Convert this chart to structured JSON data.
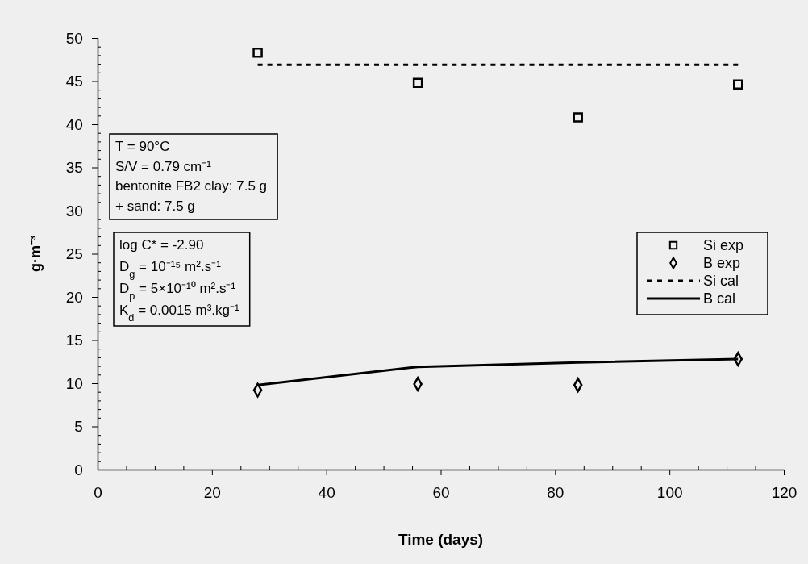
{
  "chart_data": {
    "type": "scatter",
    "xlabel": "Time (days)",
    "ylabel": "g·m⁻³",
    "xlim": [
      0,
      120
    ],
    "ylim": [
      0,
      50
    ],
    "xticks": [
      0,
      {
        "value": 5,
        "label": null
      },
      {
        "value": 10,
        "label": null
      },
      {
        "value": 15,
        "label": null
      },
      20,
      {
        "value": 25,
        "label": null
      },
      {
        "value": 30,
        "label": null
      },
      {
        "value": 35,
        "label": null
      },
      40,
      {
        "value": 45,
        "label": null
      },
      {
        "value": 50,
        "label": null
      },
      {
        "value": 55,
        "label": null
      },
      60,
      {
        "value": 65,
        "label": null
      },
      {
        "value": 70,
        "label": null
      },
      {
        "value": 75,
        "label": null
      },
      80,
      {
        "value": 85,
        "label": null
      },
      {
        "value": 90,
        "label": null
      },
      {
        "value": 95,
        "label": null
      },
      100,
      {
        "value": 105,
        "label": null
      },
      {
        "value": 110,
        "label": null
      },
      {
        "value": 115,
        "label": null
      },
      120
    ],
    "yticks": [
      0,
      {
        "value": 1,
        "label": null
      },
      {
        "value": 2,
        "label": null
      },
      {
        "value": 3,
        "label": null
      },
      {
        "value": 4,
        "label": null
      },
      5,
      {
        "value": 6,
        "label": null
      },
      {
        "value": 7,
        "label": null
      },
      {
        "value": 8,
        "label": null
      },
      {
        "value": 9,
        "label": null
      },
      10,
      {
        "value": 11,
        "label": null
      },
      {
        "value": 12,
        "label": null
      },
      {
        "value": 13,
        "label": null
      },
      {
        "value": 14,
        "label": null
      },
      15,
      {
        "value": 16,
        "label": null
      },
      {
        "value": 17,
        "label": null
      },
      {
        "value": 18,
        "label": null
      },
      {
        "value": 19,
        "label": null
      },
      20,
      {
        "value": 21,
        "label": null
      },
      {
        "value": 22,
        "label": null
      },
      {
        "value": 23,
        "label": null
      },
      {
        "value": 24,
        "label": null
      },
      25,
      {
        "value": 26,
        "label": null
      },
      {
        "value": 27,
        "label": null
      },
      {
        "value": 28,
        "label": null
      },
      {
        "value": 29,
        "label": null
      },
      30,
      {
        "value": 31,
        "label": null
      },
      {
        "value": 32,
        "label": null
      },
      {
        "value": 33,
        "label": null
      },
      {
        "value": 34,
        "label": null
      },
      35,
      {
        "value": 36,
        "label": null
      },
      {
        "value": 37,
        "label": null
      },
      {
        "value": 38,
        "label": null
      },
      {
        "value": 39,
        "label": null
      },
      40,
      {
        "value": 41,
        "label": null
      },
      {
        "value": 42,
        "label": null
      },
      {
        "value": 43,
        "label": null
      },
      {
        "value": 44,
        "label": null
      },
      45,
      {
        "value": 46,
        "label": null
      },
      {
        "value": 47,
        "label": null
      },
      {
        "value": 48,
        "label": null
      },
      {
        "value": 49,
        "label": null
      },
      50
    ],
    "x": [
      28,
      56,
      84,
      112
    ],
    "grid": false,
    "legend": "right",
    "series": [
      {
        "name": "Si exp",
        "marker": "square",
        "color": "#000000",
        "values": [
          48.3,
          44.8,
          40.8,
          44.6
        ]
      },
      {
        "name": "B exp",
        "marker": "diamond",
        "color": "#000000",
        "values": [
          9.2,
          9.9,
          9.8,
          12.8
        ]
      },
      {
        "name": "Si cal",
        "type": "line",
        "marker": "none",
        "line_style": "dashed",
        "color": "#000000",
        "values": [
          46.9,
          46.9,
          46.9,
          46.9
        ]
      },
      {
        "name": "B cal",
        "type": "line",
        "marker": "none",
        "line_style": "solid",
        "color": "#000000",
        "values": [
          9.8,
          11.9,
          12.4,
          12.8
        ]
      }
    ],
    "annotations": [
      "T = 90°C\nS/V = 0.79 cm⁻¹\nbentonite FB2 clay: 7.5 g\n+ sand: 7.5 g",
      "log C* = -2.90\nD$_{g}$ = 10⁻¹⁵ m².s⁻¹\nD$_{p}$ = 5×10⁻¹⁰ m².s⁻¹\nK$_{d}$ = 0.0015 m³.kg⁻¹"
    ]
  }
}
